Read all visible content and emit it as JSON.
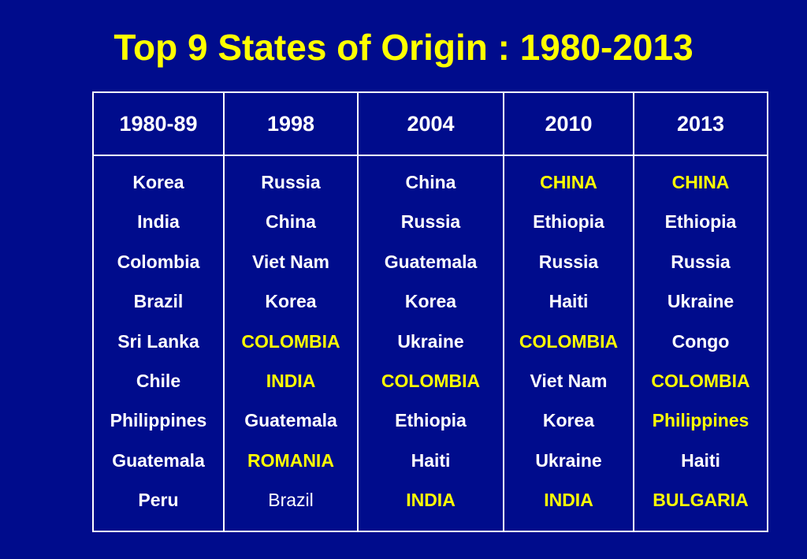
{
  "title": "Top 9 States of Origin : 1980-2013",
  "colors": {
    "background": "#000c8c",
    "highlight": "#ffff00",
    "text": "#ffffff"
  },
  "table": {
    "columns": [
      {
        "header": "1980-89",
        "items": [
          {
            "text": "Korea",
            "style": "normal"
          },
          {
            "text": "India",
            "style": "normal"
          },
          {
            "text": "Colombia",
            "style": "normal"
          },
          {
            "text": "Brazil",
            "style": "normal"
          },
          {
            "text": "Sri Lanka",
            "style": "normal"
          },
          {
            "text": "Chile",
            "style": "normal"
          },
          {
            "text": "Philippines",
            "style": "normal"
          },
          {
            "text": "Guatemala",
            "style": "normal"
          },
          {
            "text": "Peru",
            "style": "normal"
          }
        ]
      },
      {
        "header": "1998",
        "items": [
          {
            "text": "Russia",
            "style": "normal"
          },
          {
            "text": "China",
            "style": "normal"
          },
          {
            "text": "Viet Nam",
            "style": "normal"
          },
          {
            "text": "Korea",
            "style": "normal"
          },
          {
            "text": "COLOMBIA",
            "style": "highlight"
          },
          {
            "text": "INDIA",
            "style": "highlight"
          },
          {
            "text": "Guatemala",
            "style": "normal"
          },
          {
            "text": "ROMANIA",
            "style": "highlight"
          },
          {
            "text": "Brazil",
            "style": "plain"
          }
        ]
      },
      {
        "header": "2004",
        "items": [
          {
            "text": "China",
            "style": "normal"
          },
          {
            "text": "Russia",
            "style": "normal"
          },
          {
            "text": "Guatemala",
            "style": "normal"
          },
          {
            "text": "Korea",
            "style": "normal"
          },
          {
            "text": "Ukraine",
            "style": "normal"
          },
          {
            "text": "COLOMBIA",
            "style": "highlight"
          },
          {
            "text": "Ethiopia",
            "style": "normal"
          },
          {
            "text": "Haiti",
            "style": "normal"
          },
          {
            "text": "INDIA",
            "style": "highlight"
          }
        ]
      },
      {
        "header": "2010",
        "items": [
          {
            "text": "CHINA",
            "style": "highlight"
          },
          {
            "text": "Ethiopia",
            "style": "normal"
          },
          {
            "text": "Russia",
            "style": "normal"
          },
          {
            "text": "Haiti",
            "style": "normal"
          },
          {
            "text": "COLOMBIA",
            "style": "highlight"
          },
          {
            "text": "Viet Nam",
            "style": "normal"
          },
          {
            "text": "Korea",
            "style": "normal"
          },
          {
            "text": "Ukraine",
            "style": "normal"
          },
          {
            "text": "INDIA",
            "style": "highlight"
          }
        ]
      },
      {
        "header": "2013",
        "items": [
          {
            "text": "CHINA",
            "style": "highlight"
          },
          {
            "text": "Ethiopia",
            "style": "normal"
          },
          {
            "text": "Russia",
            "style": "normal"
          },
          {
            "text": "Ukraine",
            "style": "normal"
          },
          {
            "text": "Congo",
            "style": "normal"
          },
          {
            "text": "COLOMBIA",
            "style": "highlight"
          },
          {
            "text": "Philippines",
            "style": "highlight"
          },
          {
            "text": "Haiti",
            "style": "normal"
          },
          {
            "text": "BULGARIA",
            "style": "highlight"
          }
        ]
      }
    ]
  }
}
